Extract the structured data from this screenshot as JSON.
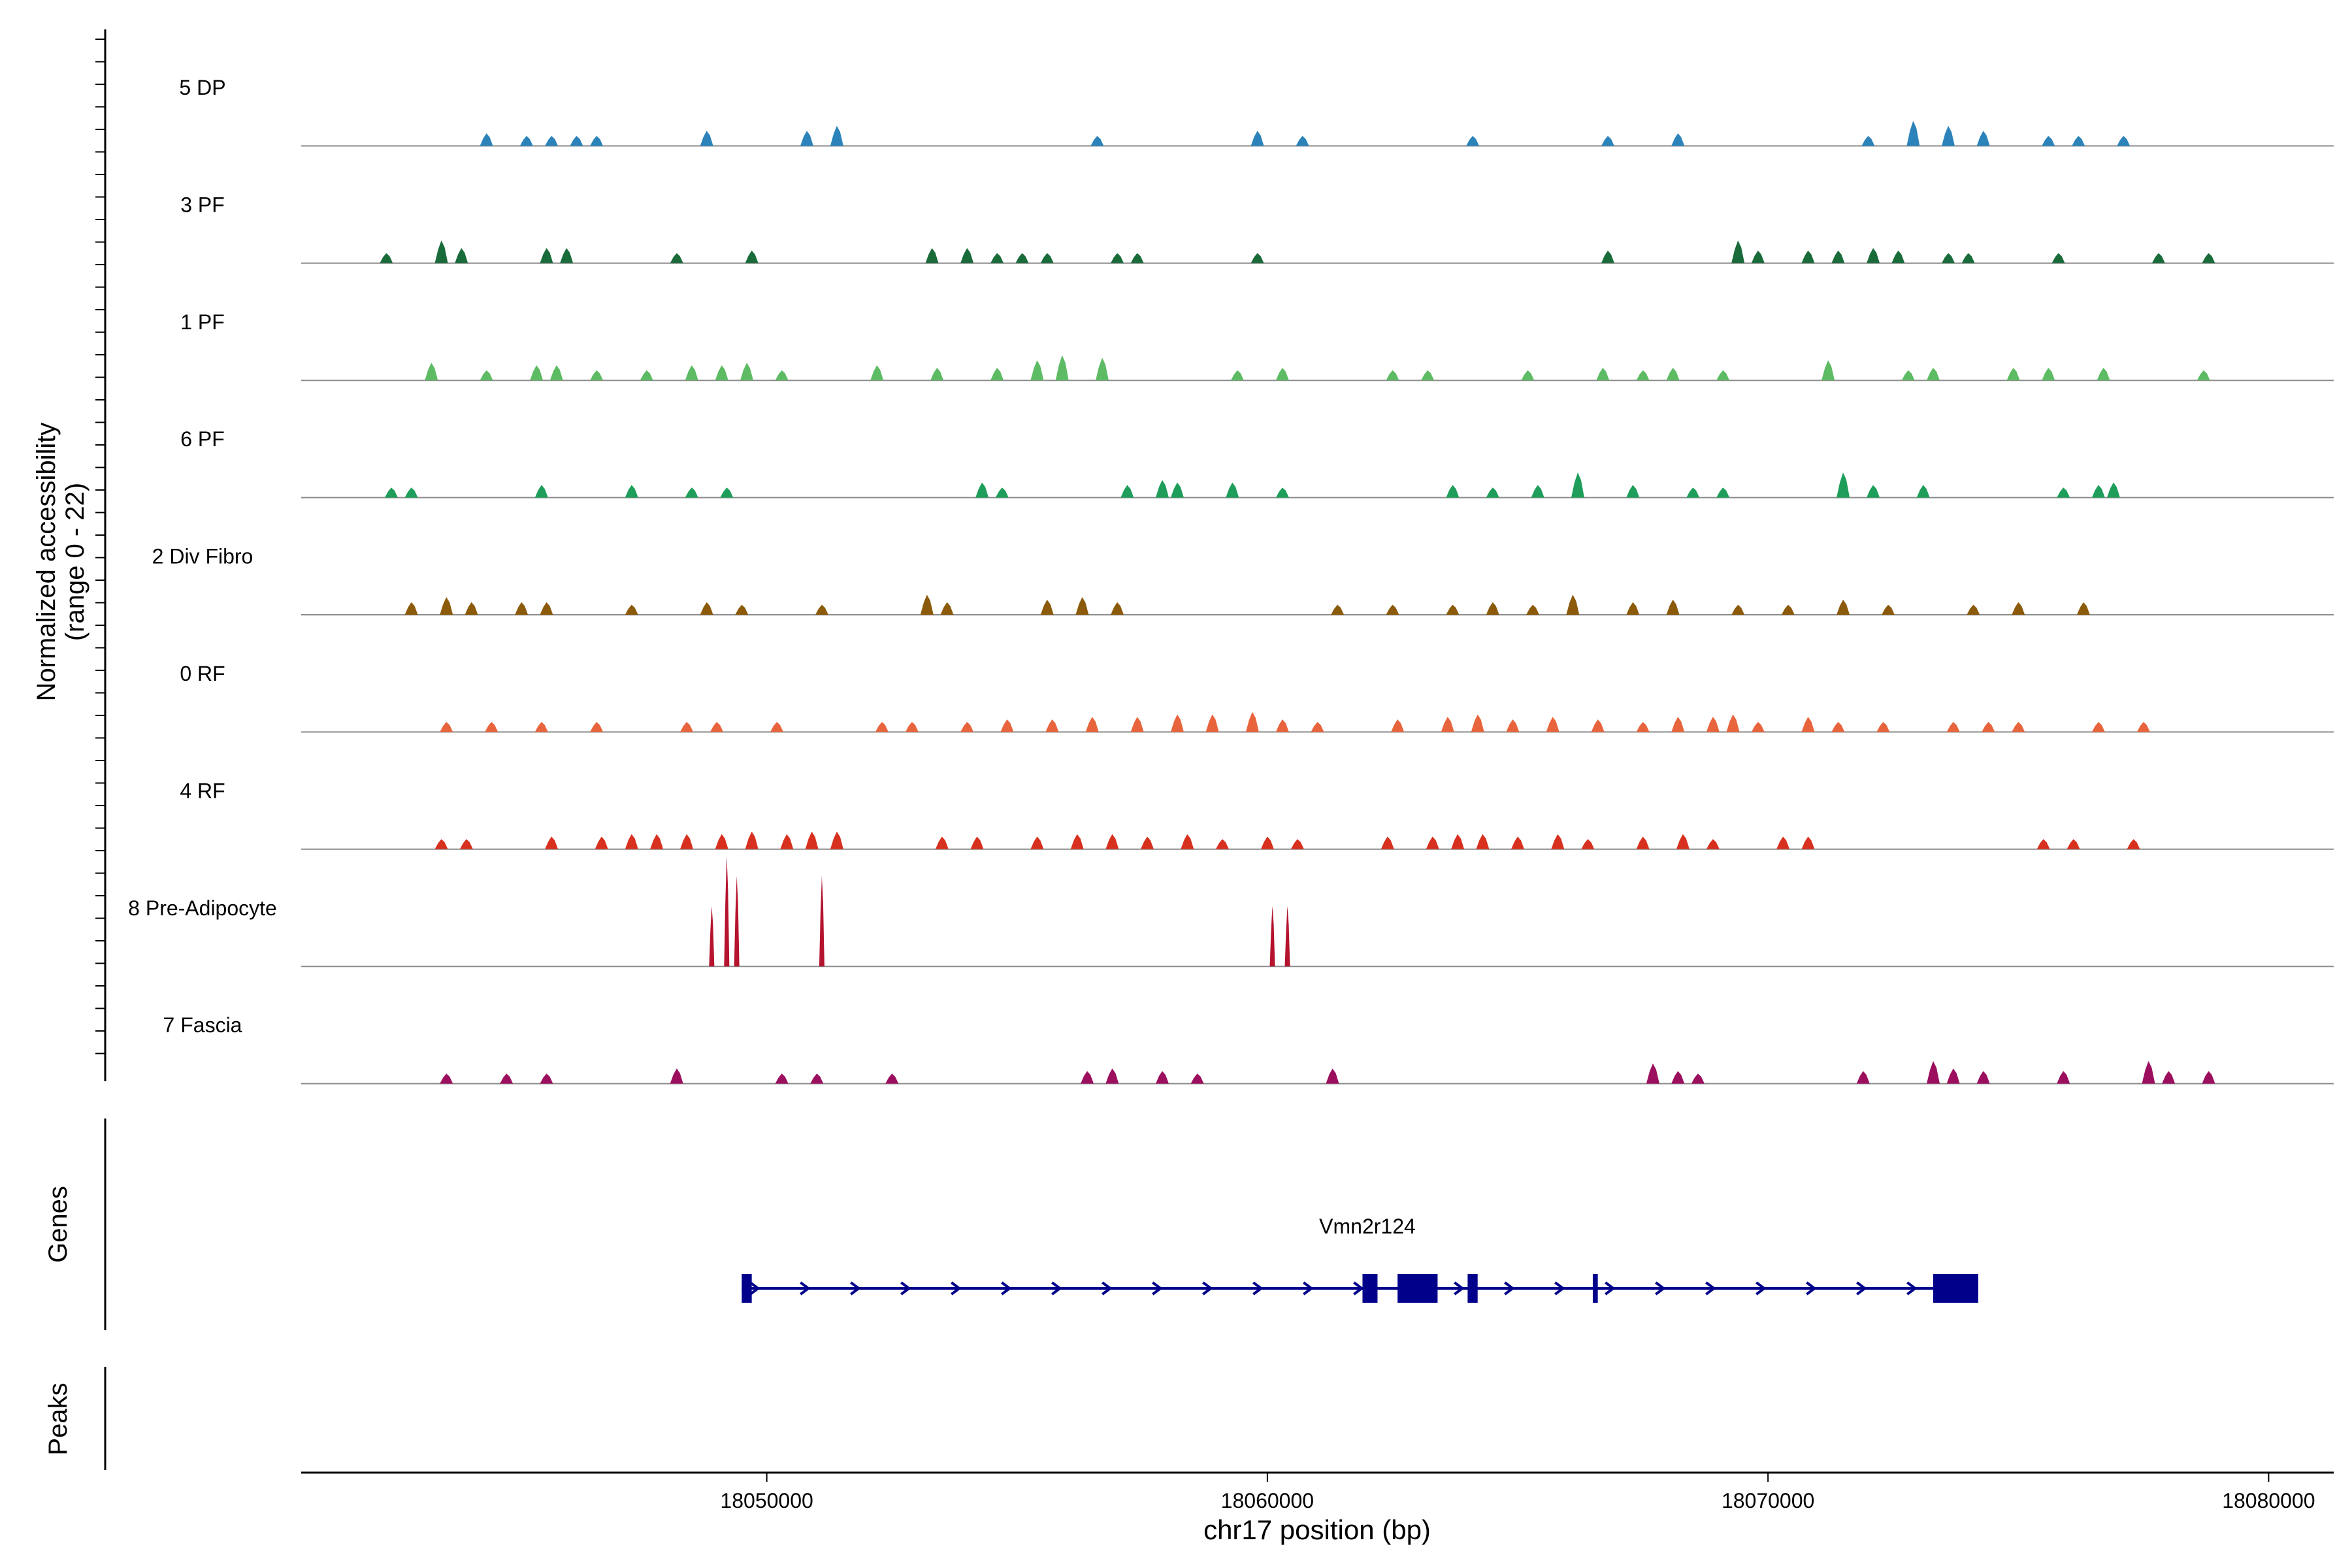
{
  "chart_data": {
    "type": "coverage_track",
    "region": {
      "chrom": "chr17",
      "start": 18040700,
      "end": 18081300
    },
    "ylabel_line1": "Normalized accessibility",
    "ylabel_line2": "(range 0 - 22)",
    "ylim": [
      0,
      22
    ],
    "xlabel": "chr17 position (bp)",
    "x_ticks": [
      {
        "value": 18050000,
        "label": "18050000"
      },
      {
        "value": 18060000,
        "label": "18060000"
      },
      {
        "value": 18070000,
        "label": "18070000"
      },
      {
        "value": 18080000,
        "label": "18080000"
      }
    ],
    "tracks": [
      {
        "name": "5 DP",
        "color": "#2B83BA",
        "peaks": [
          [
            18044400,
            2.5
          ],
          [
            18045200,
            2
          ],
          [
            18045700,
            2
          ],
          [
            18046200,
            2
          ],
          [
            18046600,
            2
          ],
          [
            18048800,
            3
          ],
          [
            18050800,
            3
          ],
          [
            18051400,
            4
          ],
          [
            18056600,
            2
          ],
          [
            18059800,
            3
          ],
          [
            18060700,
            2
          ],
          [
            18064100,
            2
          ],
          [
            18066800,
            2
          ],
          [
            18068200,
            2.5
          ],
          [
            18072000,
            2
          ],
          [
            18072900,
            5
          ],
          [
            18073600,
            4
          ],
          [
            18074300,
            3
          ],
          [
            18075600,
            2
          ],
          [
            18076200,
            2
          ],
          [
            18077100,
            2
          ]
        ]
      },
      {
        "name": "3 PF",
        "color": "#1A6B3A",
        "peaks": [
          [
            18042400,
            2
          ],
          [
            18043500,
            4.5
          ],
          [
            18043900,
            3
          ],
          [
            18045600,
            3
          ],
          [
            18046000,
            3
          ],
          [
            18048200,
            2
          ],
          [
            18049700,
            2.5
          ],
          [
            18053300,
            3
          ],
          [
            18054000,
            3
          ],
          [
            18054600,
            2
          ],
          [
            18055100,
            2
          ],
          [
            18055600,
            2
          ],
          [
            18057000,
            2
          ],
          [
            18057400,
            2
          ],
          [
            18059800,
            2
          ],
          [
            18066800,
            2.5
          ],
          [
            18069400,
            4.5
          ],
          [
            18069800,
            2.5
          ],
          [
            18070800,
            2.5
          ],
          [
            18071400,
            2.5
          ],
          [
            18072100,
            3
          ],
          [
            18072600,
            2.5
          ],
          [
            18073600,
            2
          ],
          [
            18074000,
            2
          ],
          [
            18075800,
            2
          ],
          [
            18077800,
            2
          ],
          [
            18078800,
            2
          ]
        ]
      },
      {
        "name": "1 PF",
        "color": "#5DBB63",
        "peaks": [
          [
            18043300,
            3.5
          ],
          [
            18044400,
            2
          ],
          [
            18045400,
            3
          ],
          [
            18045800,
            3
          ],
          [
            18046600,
            2
          ],
          [
            18047600,
            2
          ],
          [
            18048500,
            3
          ],
          [
            18049100,
            3
          ],
          [
            18049600,
            3.5
          ],
          [
            18050300,
            2
          ],
          [
            18052200,
            3
          ],
          [
            18053400,
            2.5
          ],
          [
            18054600,
            2.5
          ],
          [
            18055400,
            4
          ],
          [
            18055900,
            5
          ],
          [
            18056700,
            4.5
          ],
          [
            18059400,
            2
          ],
          [
            18060300,
            2.5
          ],
          [
            18062500,
            2
          ],
          [
            18063200,
            2
          ],
          [
            18065200,
            2
          ],
          [
            18066700,
            2.5
          ],
          [
            18067500,
            2
          ],
          [
            18068100,
            2.5
          ],
          [
            18069100,
            2
          ],
          [
            18071200,
            4
          ],
          [
            18072800,
            2
          ],
          [
            18073300,
            2.5
          ],
          [
            18074900,
            2.5
          ],
          [
            18075600,
            2.5
          ],
          [
            18076700,
            2.5
          ],
          [
            18078700,
            2
          ]
        ]
      },
      {
        "name": "6 PF",
        "color": "#1E9E5A",
        "peaks": [
          [
            18042500,
            2
          ],
          [
            18042900,
            2
          ],
          [
            18045500,
            2.5
          ],
          [
            18047300,
            2.5
          ],
          [
            18048500,
            2
          ],
          [
            18049200,
            2
          ],
          [
            18054300,
            3
          ],
          [
            18054700,
            2
          ],
          [
            18057200,
            2.5
          ],
          [
            18057900,
            3.5
          ],
          [
            18058200,
            3
          ],
          [
            18059300,
            3
          ],
          [
            18060300,
            2
          ],
          [
            18063700,
            2.5
          ],
          [
            18064500,
            2
          ],
          [
            18065400,
            2.5
          ],
          [
            18066200,
            5
          ],
          [
            18067300,
            2.5
          ],
          [
            18068500,
            2
          ],
          [
            18069100,
            2
          ],
          [
            18071500,
            5
          ],
          [
            18072100,
            2.5
          ],
          [
            18073100,
            2.5
          ],
          [
            18075900,
            2
          ],
          [
            18076600,
            2.5
          ],
          [
            18076900,
            3
          ]
        ]
      },
      {
        "name": "2 Div Fibro",
        "color": "#8B5A0B",
        "peaks": [
          [
            18042900,
            2.5
          ],
          [
            18043600,
            3.5
          ],
          [
            18044100,
            2.5
          ],
          [
            18045100,
            2.5
          ],
          [
            18045600,
            2.5
          ],
          [
            18047300,
            2
          ],
          [
            18048800,
            2.5
          ],
          [
            18049500,
            2
          ],
          [
            18051100,
            2
          ],
          [
            18053200,
            4
          ],
          [
            18053600,
            2.5
          ],
          [
            18055600,
            3
          ],
          [
            18056300,
            3.5
          ],
          [
            18057000,
            2.5
          ],
          [
            18061400,
            2
          ],
          [
            18062500,
            2
          ],
          [
            18063700,
            2
          ],
          [
            18064500,
            2.5
          ],
          [
            18065300,
            2
          ],
          [
            18066100,
            4
          ],
          [
            18067300,
            2.5
          ],
          [
            18068100,
            3
          ],
          [
            18069400,
            2
          ],
          [
            18070400,
            2
          ],
          [
            18071500,
            3
          ],
          [
            18072400,
            2
          ],
          [
            18074100,
            2
          ],
          [
            18075000,
            2.5
          ],
          [
            18076300,
            2.5
          ]
        ]
      },
      {
        "name": "0 RF",
        "color": "#E8643C",
        "peaks": [
          [
            18043600,
            2
          ],
          [
            18044500,
            2
          ],
          [
            18045500,
            2
          ],
          [
            18046600,
            2
          ],
          [
            18048400,
            2
          ],
          [
            18049000,
            2
          ],
          [
            18050200,
            2
          ],
          [
            18052300,
            2
          ],
          [
            18052900,
            2
          ],
          [
            18054000,
            2
          ],
          [
            18054800,
            2.5
          ],
          [
            18055700,
            2.5
          ],
          [
            18056500,
            3
          ],
          [
            18057400,
            3
          ],
          [
            18058200,
            3.5
          ],
          [
            18058900,
            3.5
          ],
          [
            18059700,
            4
          ],
          [
            18060300,
            2.5
          ],
          [
            18061000,
            2
          ],
          [
            18062600,
            2.5
          ],
          [
            18063600,
            3
          ],
          [
            18064200,
            3.5
          ],
          [
            18064900,
            2.5
          ],
          [
            18065700,
            3
          ],
          [
            18066600,
            2.5
          ],
          [
            18067500,
            2
          ],
          [
            18068200,
            3
          ],
          [
            18068900,
            3
          ],
          [
            18069300,
            3.5
          ],
          [
            18069800,
            2
          ],
          [
            18070800,
            3
          ],
          [
            18071400,
            2
          ],
          [
            18072300,
            2
          ],
          [
            18073700,
            2
          ],
          [
            18074400,
            2
          ],
          [
            18075000,
            2
          ],
          [
            18076600,
            2
          ],
          [
            18077500,
            2
          ]
        ]
      },
      {
        "name": "4 RF",
        "color": "#D7301F",
        "peaks": [
          [
            18043500,
            2
          ],
          [
            18044000,
            2
          ],
          [
            18045700,
            2.5
          ],
          [
            18046700,
            2.5
          ],
          [
            18047300,
            3
          ],
          [
            18047800,
            3
          ],
          [
            18048400,
            3
          ],
          [
            18049100,
            3
          ],
          [
            18049700,
            3.5
          ],
          [
            18050400,
            3
          ],
          [
            18050900,
            3.5
          ],
          [
            18051400,
            3.5
          ],
          [
            18053500,
            2.5
          ],
          [
            18054200,
            2.5
          ],
          [
            18055400,
            2.5
          ],
          [
            18056200,
            3
          ],
          [
            18056900,
            3
          ],
          [
            18057600,
            2.5
          ],
          [
            18058400,
            3
          ],
          [
            18059100,
            2
          ],
          [
            18060000,
            2.5
          ],
          [
            18060600,
            2
          ],
          [
            18062400,
            2.5
          ],
          [
            18063300,
            2.5
          ],
          [
            18063800,
            3
          ],
          [
            18064300,
            3
          ],
          [
            18065000,
            2.5
          ],
          [
            18065800,
            3
          ],
          [
            18066400,
            2
          ],
          [
            18067500,
            2.5
          ],
          [
            18068300,
            3
          ],
          [
            18068900,
            2
          ],
          [
            18070300,
            2.5
          ],
          [
            18070800,
            2.5
          ],
          [
            18075500,
            2
          ],
          [
            18076100,
            2
          ],
          [
            18077300,
            2
          ]
        ]
      },
      {
        "name": "8 Pre-Adipocyte",
        "color": "#B5132E",
        "peaks": [
          [
            18048900,
            12
          ],
          [
            18049200,
            22
          ],
          [
            18049400,
            18
          ],
          [
            18051100,
            18
          ],
          [
            18060100,
            12
          ],
          [
            18060400,
            12
          ]
        ]
      },
      {
        "name": "7 Fascia",
        "color": "#9C0F5F",
        "peaks": [
          [
            18043600,
            2
          ],
          [
            18044800,
            2
          ],
          [
            18045600,
            2
          ],
          [
            18048200,
            3
          ],
          [
            18050300,
            2
          ],
          [
            18051000,
            2
          ],
          [
            18052500,
            2
          ],
          [
            18056400,
            2.5
          ],
          [
            18056900,
            3
          ],
          [
            18057900,
            2.5
          ],
          [
            18058600,
            2
          ],
          [
            18061300,
            3
          ],
          [
            18067700,
            4
          ],
          [
            18068200,
            2.5
          ],
          [
            18068600,
            2
          ],
          [
            18071900,
            2.5
          ],
          [
            18073300,
            4.5
          ],
          [
            18073700,
            3
          ],
          [
            18074300,
            2.5
          ],
          [
            18075900,
            2.5
          ],
          [
            18077600,
            4.5
          ],
          [
            18078000,
            2.5
          ],
          [
            18078800,
            2.5
          ]
        ]
      }
    ],
    "genes_label": "Genes",
    "peaks_label": "Peaks",
    "gene": {
      "name": "Vmn2r124",
      "color": "#00008B",
      "start": 18049500,
      "end": 18074200,
      "exons": [
        [
          18049500,
          18049700
        ],
        [
          18061900,
          18062200
        ],
        [
          18062600,
          18063400
        ],
        [
          18064000,
          18064200
        ],
        [
          18066500,
          18066600
        ],
        [
          18073300,
          18074200
        ]
      ]
    }
  }
}
